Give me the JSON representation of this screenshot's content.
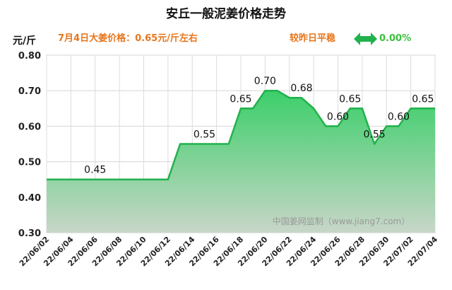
{
  "chart_data": {
    "type": "area",
    "title": "安丘一般泥姜价格走势",
    "ylabel": "元/斤",
    "ylim": [
      0.3,
      0.8
    ],
    "yticks": [
      "0.80",
      "0.70",
      "0.60",
      "0.50",
      "0.40",
      "0.30"
    ],
    "ytick_values": [
      0.8,
      0.7,
      0.6,
      0.5,
      0.4,
      0.3
    ],
    "xtick_labels": [
      "22/06/02",
      "22/06/04",
      "22/06/06",
      "22/06/08",
      "22/06/10",
      "22/06/12",
      "22/06/14",
      "22/06/16",
      "22/06/18",
      "22/06/20",
      "22/06/22",
      "22/06/24",
      "22/06/26",
      "22/06/28",
      "22/06/30",
      "22/07/02",
      "22/07/04"
    ],
    "x": [
      "22/06/02",
      "22/06/03",
      "22/06/04",
      "22/06/05",
      "22/06/06",
      "22/06/07",
      "22/06/08",
      "22/06/09",
      "22/06/10",
      "22/06/11",
      "22/06/12",
      "22/06/13",
      "22/06/14",
      "22/06/15",
      "22/06/16",
      "22/06/17",
      "22/06/18",
      "22/06/19",
      "22/06/20",
      "22/06/21",
      "22/06/22",
      "22/06/23",
      "22/06/24",
      "22/06/25",
      "22/06/26",
      "22/06/27",
      "22/06/28",
      "22/06/29",
      "22/06/30",
      "22/07/01",
      "22/07/02",
      "22/07/03",
      "22/07/04"
    ],
    "values": [
      0.45,
      0.45,
      0.45,
      0.45,
      0.45,
      0.45,
      0.45,
      0.45,
      0.45,
      0.45,
      0.45,
      0.55,
      0.55,
      0.55,
      0.55,
      0.55,
      0.65,
      0.65,
      0.7,
      0.7,
      0.68,
      0.68,
      0.65,
      0.6,
      0.6,
      0.65,
      0.65,
      0.55,
      0.6,
      0.6,
      0.65,
      0.65,
      0.65
    ],
    "data_labels": [
      {
        "index": 4,
        "text": "0.45"
      },
      {
        "index": 13,
        "text": "0.55"
      },
      {
        "index": 16,
        "text": "0.65"
      },
      {
        "index": 18,
        "text": "0.70"
      },
      {
        "index": 21,
        "text": "0.68"
      },
      {
        "index": 24,
        "text": "0.60"
      },
      {
        "index": 25,
        "text": "0.65"
      },
      {
        "index": 27,
        "text": "0.55"
      },
      {
        "index": 29,
        "text": "0.60"
      },
      {
        "index": 31,
        "text": "0.65"
      }
    ],
    "grid": true,
    "colors": {
      "line": "#22b14c",
      "fill_top": "#3ccf6a",
      "fill_bottom": "#c8d6c8"
    }
  },
  "header": {
    "unit": "元/斤",
    "price_text": "7月4日大姜价格：0.65元/斤左右",
    "trend_text": "较昨日平稳",
    "change_pct": "0.00%",
    "trend_icon": "double-arrow-icon"
  },
  "watermark": "中国姜网监制（www.jiang7.com）"
}
